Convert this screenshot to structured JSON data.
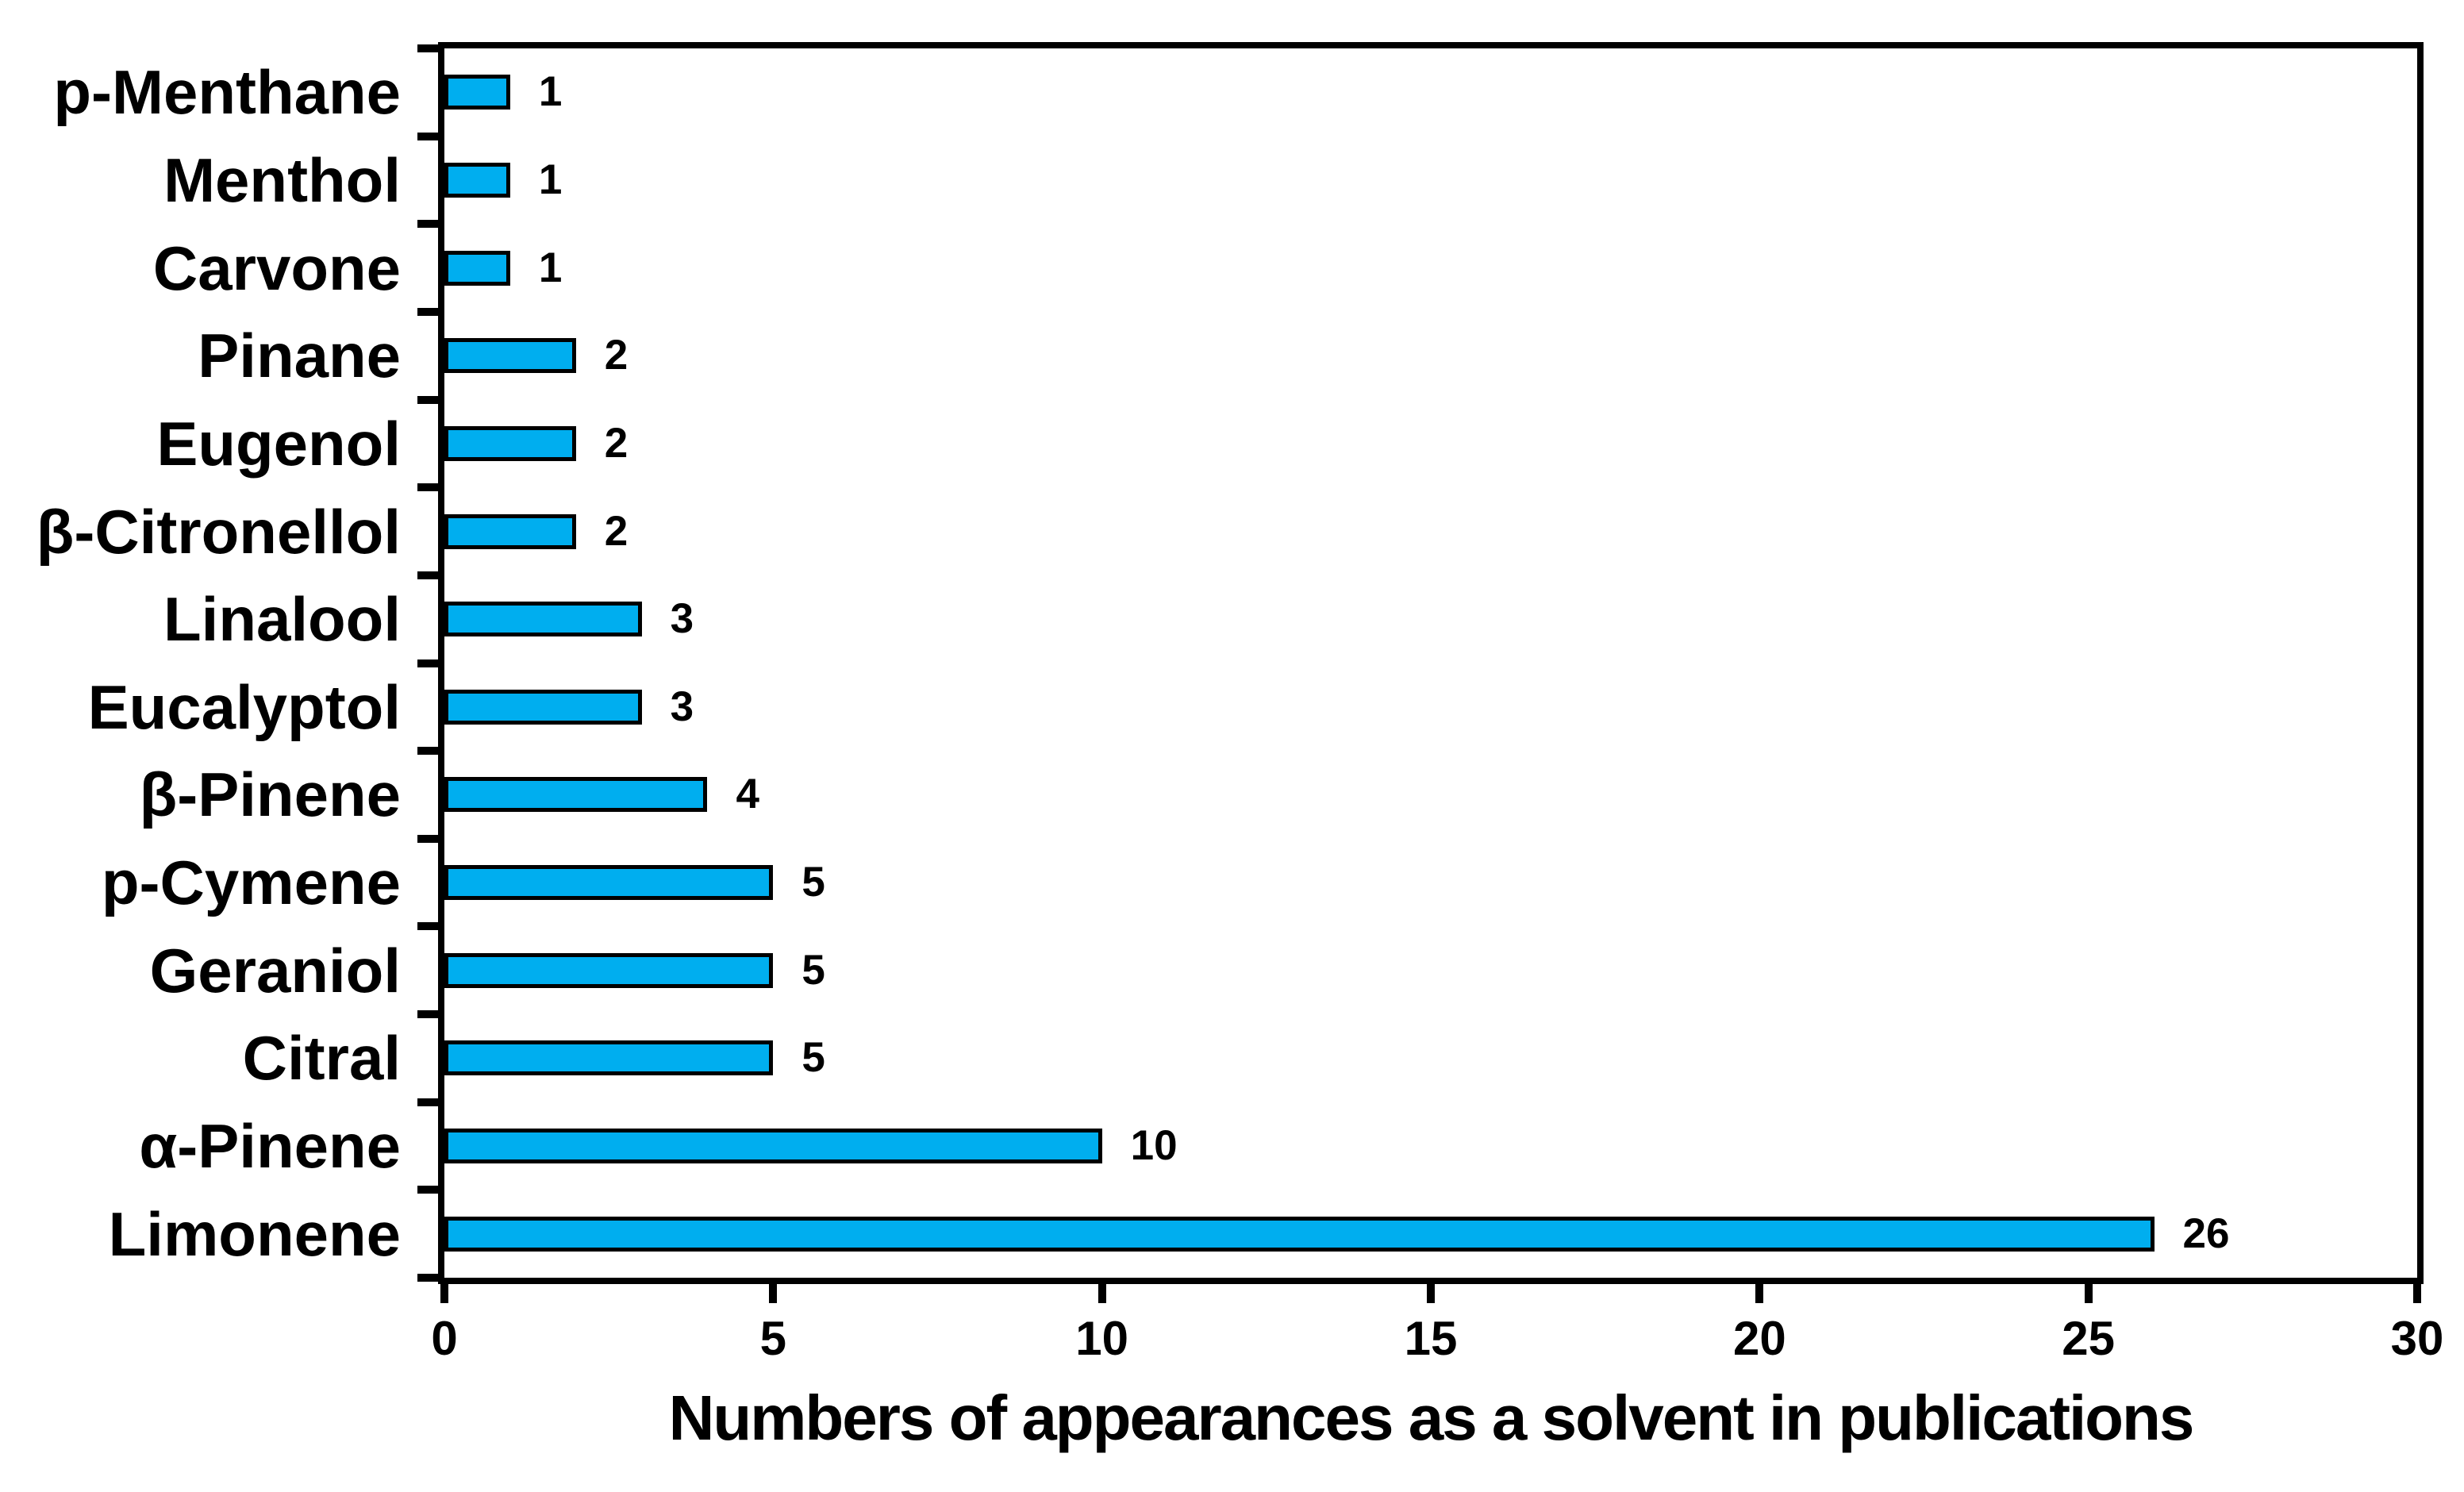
{
  "chart_data": {
    "type": "bar",
    "orientation": "horizontal",
    "title": "",
    "xlabel": "Numbers of appearances as a solvent in publications",
    "ylabel": "",
    "xlim": [
      0,
      30
    ],
    "x_ticks": [
      0,
      5,
      10,
      15,
      20,
      25,
      30
    ],
    "grid": false,
    "legend": null,
    "value_labels_shown": true,
    "bar_color": "#00AEEF",
    "bar_border_color": "#000000",
    "axis_color": "#000000",
    "categories_top_to_bottom": [
      "p-Menthane",
      "Menthol",
      "Carvone",
      "Pinane",
      "Eugenol",
      "β-Citronellol",
      "Linalool",
      "Eucalyptol",
      "β-Pinene",
      "p-Cymene",
      "Geraniol",
      "Citral",
      "α-Pinene",
      "Limonene"
    ],
    "values": [
      1,
      1,
      1,
      2,
      2,
      2,
      3,
      3,
      4,
      5,
      5,
      5,
      10,
      26
    ]
  }
}
